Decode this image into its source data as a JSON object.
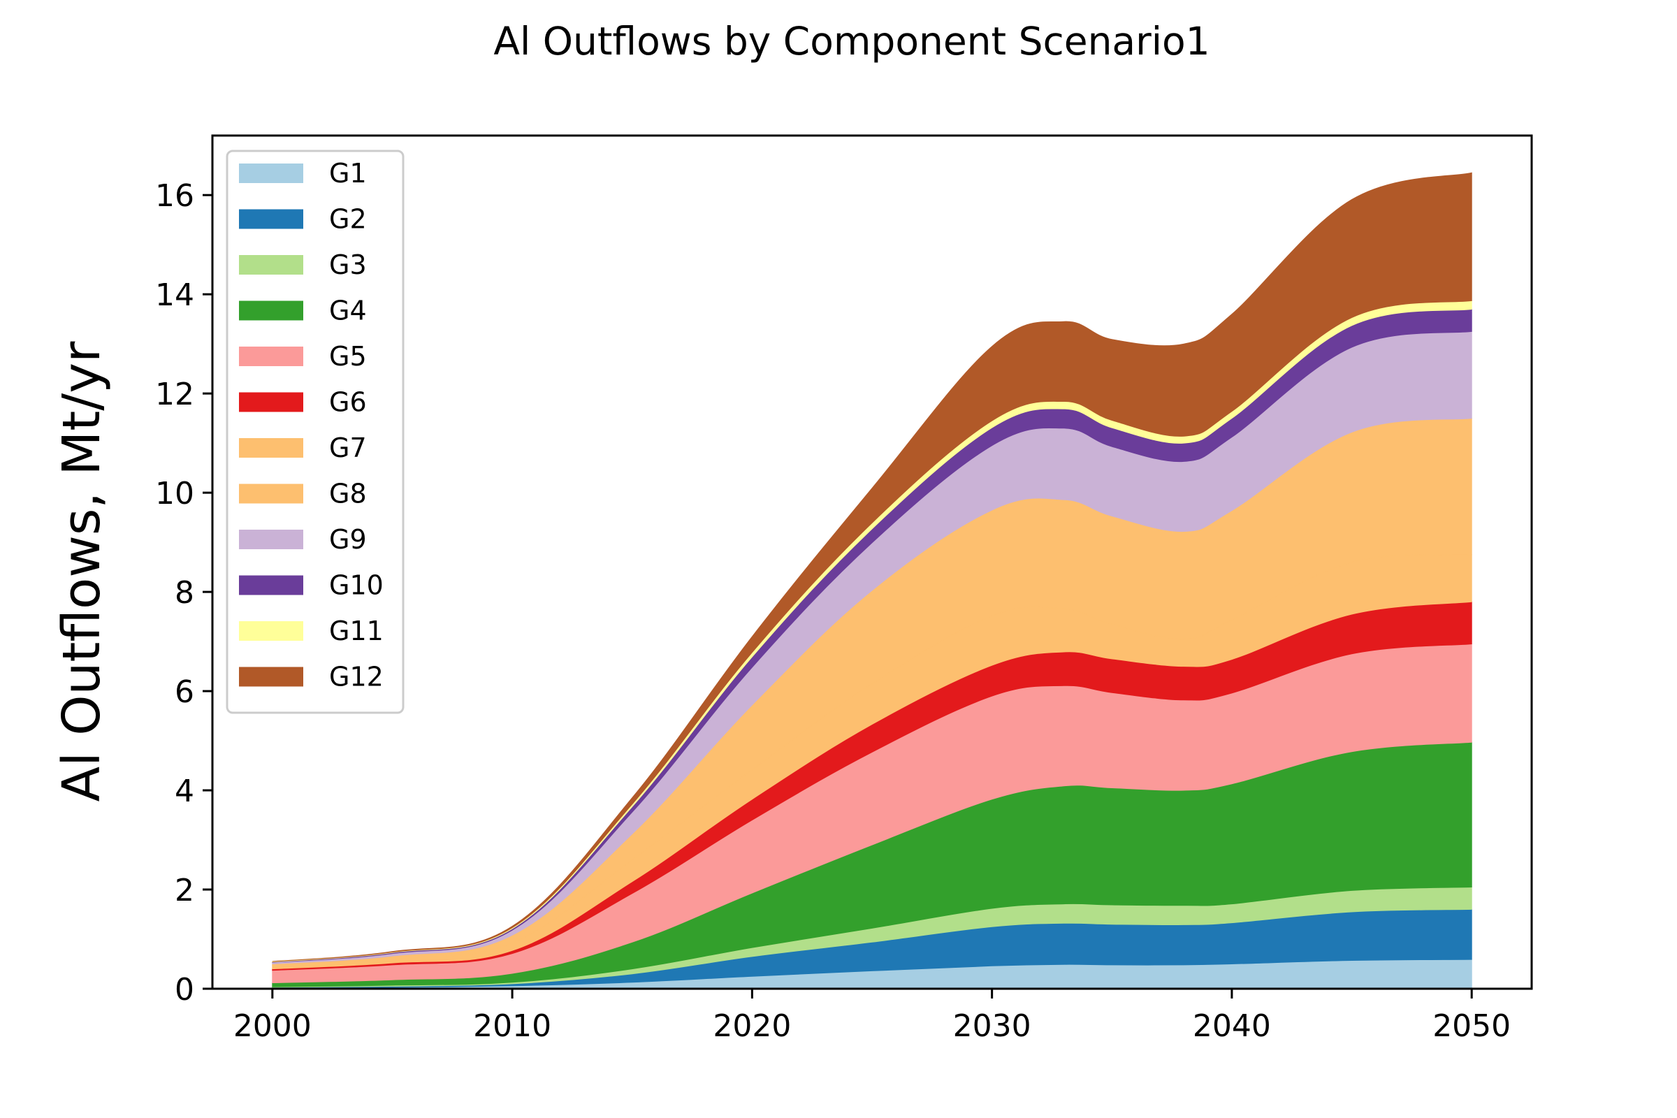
{
  "chart_data": {
    "type": "area",
    "stacked": true,
    "title": "Al Outflows by Component Scenario1",
    "ylabel": "Al Outflows, Mt/yr",
    "xlabel": "",
    "xlim": [
      1997.5,
      2052.5
    ],
    "ylim": [
      0,
      17.2
    ],
    "xticks": [
      2000,
      2010,
      2020,
      2030,
      2040,
      2050
    ],
    "xtick_labels": [
      "2000",
      "2010",
      "2020",
      "2030",
      "2040",
      "2050"
    ],
    "yticks": [
      0,
      2,
      4,
      6,
      8,
      10,
      12,
      14,
      16
    ],
    "ytick_labels": [
      "0",
      "2",
      "4",
      "6",
      "8",
      "10",
      "12",
      "14",
      "16"
    ],
    "grid": false,
    "legend_position": "upper-left",
    "x": [
      2000,
      2005,
      2010,
      2015,
      2020,
      2025,
      2030,
      2033,
      2035,
      2038,
      2040,
      2045,
      2050
    ],
    "series": [
      {
        "name": "G1",
        "color": "#a6cee3",
        "values": [
          0.02,
          0.03,
          0.06,
          0.13,
          0.25,
          0.36,
          0.46,
          0.49,
          0.48,
          0.48,
          0.5,
          0.57,
          0.59
        ]
      },
      {
        "name": "G2",
        "color": "#1f78b4",
        "values": [
          0.01,
          0.02,
          0.04,
          0.17,
          0.4,
          0.58,
          0.79,
          0.83,
          0.82,
          0.81,
          0.83,
          0.98,
          1.01
        ]
      },
      {
        "name": "G3",
        "color": "#b2df8a",
        "values": [
          0.01,
          0.02,
          0.03,
          0.1,
          0.18,
          0.28,
          0.37,
          0.39,
          0.39,
          0.39,
          0.38,
          0.43,
          0.45
        ]
      },
      {
        "name": "G4",
        "color": "#33a02c",
        "values": [
          0.08,
          0.11,
          0.18,
          0.54,
          1.1,
          1.68,
          2.2,
          2.38,
          2.36,
          2.32,
          2.42,
          2.8,
          2.92
        ]
      },
      {
        "name": "G5",
        "color": "#fb9a99",
        "values": [
          0.25,
          0.3,
          0.4,
          0.98,
          1.47,
          1.87,
          2.08,
          2.02,
          1.92,
          1.82,
          1.83,
          1.97,
          1.98
        ]
      },
      {
        "name": "G6",
        "color": "#e31a1c",
        "values": [
          0.03,
          0.04,
          0.06,
          0.24,
          0.42,
          0.56,
          0.62,
          0.68,
          0.68,
          0.68,
          0.68,
          0.8,
          0.85
        ]
      },
      {
        "name": "G7",
        "color": "#fdbf6f",
        "values": [
          0.07,
          0.09,
          0.16,
          0.44,
          0.6,
          0.82,
          1.0,
          0.87,
          0.7,
          0.55,
          0.8,
          1.05,
          0.95
        ]
      },
      {
        "name": "G8",
        "color": "#fdbf6f",
        "values": [
          0.03,
          0.05,
          0.15,
          0.52,
          1.3,
          1.88,
          2.13,
          2.2,
          2.18,
          2.17,
          2.2,
          2.62,
          2.75
        ]
      },
      {
        "name": "G9",
        "color": "#cab2d6",
        "values": [
          0.03,
          0.05,
          0.1,
          0.44,
          0.76,
          0.96,
          1.3,
          1.44,
          1.4,
          1.41,
          1.48,
          1.71,
          1.75
        ]
      },
      {
        "name": "G10",
        "color": "#6a3d9a",
        "values": [
          0.01,
          0.02,
          0.03,
          0.11,
          0.21,
          0.28,
          0.36,
          0.39,
          0.38,
          0.37,
          0.38,
          0.44,
          0.45
        ]
      },
      {
        "name": "G11",
        "color": "#ffff99",
        "values": [
          0.01,
          0.01,
          0.02,
          0.05,
          0.09,
          0.12,
          0.14,
          0.15,
          0.15,
          0.14,
          0.14,
          0.16,
          0.17
        ]
      },
      {
        "name": "G12",
        "color": "#b15928",
        "values": [
          0.0,
          0.01,
          0.03,
          0.13,
          0.32,
          0.7,
          1.5,
          1.61,
          1.63,
          1.86,
          1.96,
          2.38,
          2.58
        ]
      }
    ]
  }
}
